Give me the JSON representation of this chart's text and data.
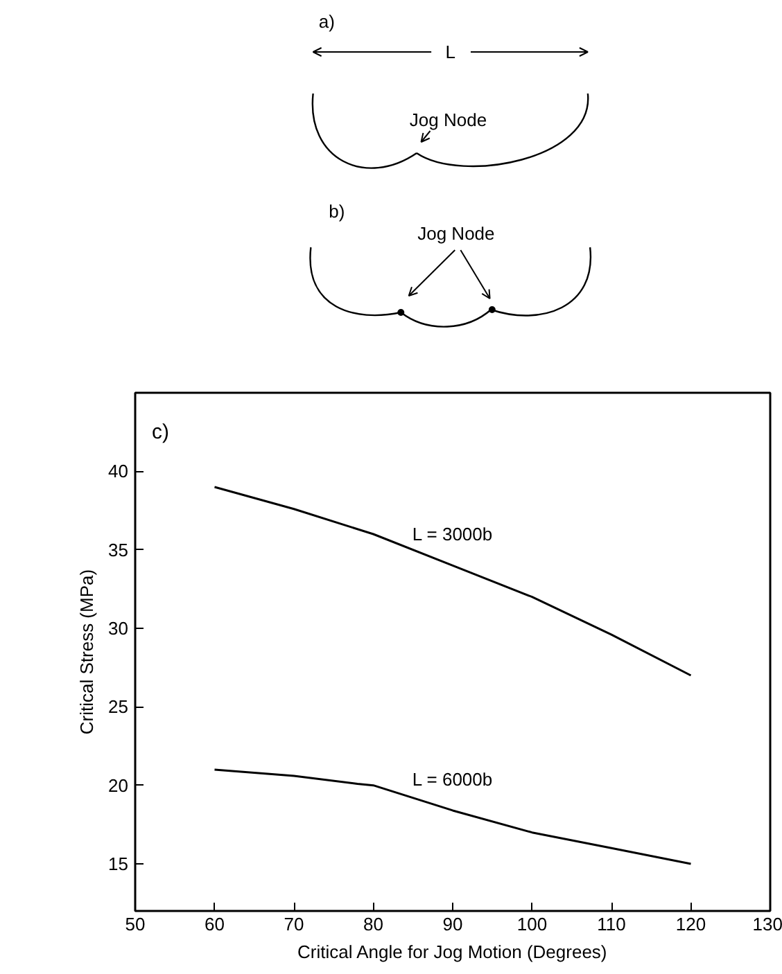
{
  "chart_data": [
    {
      "type": "other",
      "annotations": [
        "a)",
        "L",
        "Jog Node",
        "b)",
        "Jog Node"
      ]
    },
    {
      "type": "line",
      "xlabel": "Critical Angle for Jog Motion (Degrees)",
      "ylabel": "Critical Stress (MPa)",
      "annotations": [
        "c)"
      ],
      "xlim": [
        50,
        130
      ],
      "xticks": [
        50,
        60,
        70,
        80,
        90,
        100,
        110,
        120,
        130
      ],
      "ylim": [
        12,
        45
      ],
      "yticks": [
        15,
        20,
        25,
        30,
        35,
        40
      ],
      "grid": false,
      "marker": "none",
      "line_style": "solid",
      "series": [
        {
          "name": "L = 3000b",
          "color": "#000000",
          "x": [
            60,
            70,
            80,
            90,
            100,
            110,
            120
          ],
          "values": [
            39,
            37.6,
            36,
            34,
            32,
            29.6,
            27
          ]
        },
        {
          "name": "L = 6000b",
          "color": "#000000",
          "x": [
            60,
            70,
            78,
            80,
            90,
            100,
            110,
            120
          ],
          "values": [
            21,
            20.6,
            20.1,
            20,
            18.4,
            17,
            16,
            15
          ]
        }
      ]
    }
  ]
}
